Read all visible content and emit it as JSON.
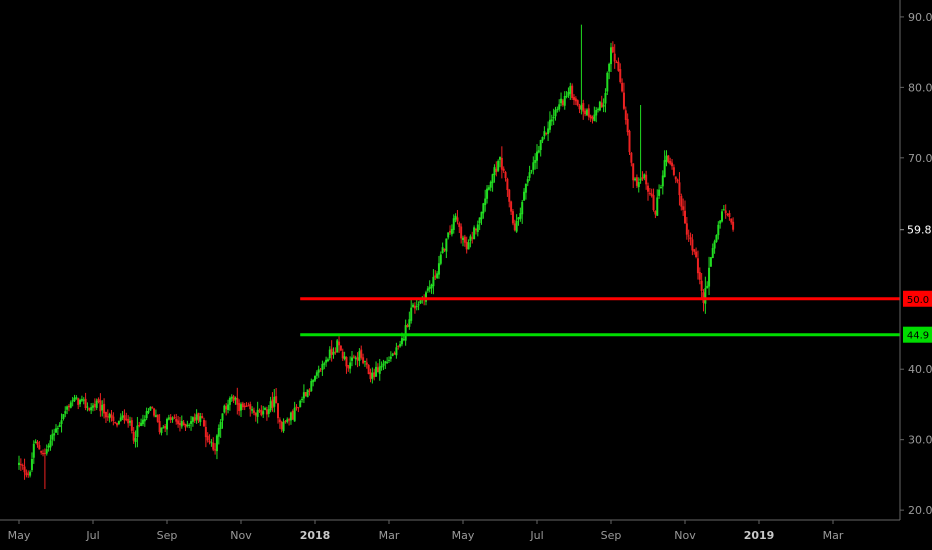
{
  "chart_data": {
    "type": "candlestick",
    "title": "",
    "xlabel": "",
    "ylabel": "",
    "ylim": [
      18.6,
      92.4
    ],
    "grid": false,
    "x_ticks": [
      {
        "label": "May",
        "bold": false
      },
      {
        "label": "Jul",
        "bold": false
      },
      {
        "label": "Sep",
        "bold": false
      },
      {
        "label": "Nov",
        "bold": false
      },
      {
        "label": "2018",
        "bold": true
      },
      {
        "label": "Mar",
        "bold": false
      },
      {
        "label": "May",
        "bold": false
      },
      {
        "label": "Jul",
        "bold": false
      },
      {
        "label": "Sep",
        "bold": false
      },
      {
        "label": "Nov",
        "bold": false
      },
      {
        "label": "2019",
        "bold": true
      },
      {
        "label": "Mar",
        "bold": false
      }
    ],
    "y_ticks": [
      "90.0",
      "80.0",
      "70.0",
      "40.0",
      "30.0",
      "20.0"
    ],
    "current_price": {
      "label": "59.8",
      "value": 59.8
    },
    "levels": [
      {
        "label": "50.0",
        "value": 50.0,
        "color": "#ff0000",
        "start_month": 7.6
      },
      {
        "label": "44.9",
        "value": 44.9,
        "color": "#00dd00",
        "start_month": 7.6
      }
    ],
    "price_path": [
      [
        0.0,
        26.5
      ],
      [
        0.3,
        25.0
      ],
      [
        0.4,
        29.5
      ],
      [
        0.7,
        28.0
      ],
      [
        1.0,
        31.5
      ],
      [
        1.2,
        33.5
      ],
      [
        1.4,
        35.5
      ],
      [
        1.6,
        35.5
      ],
      [
        1.9,
        34.5
      ],
      [
        2.1,
        35.0
      ],
      [
        2.4,
        33.5
      ],
      [
        2.6,
        32.0
      ],
      [
        2.9,
        33.5
      ],
      [
        3.1,
        30.5
      ],
      [
        3.4,
        33.0
      ],
      [
        3.6,
        34.5
      ],
      [
        3.8,
        31.5
      ],
      [
        4.1,
        33.0
      ],
      [
        4.4,
        32.0
      ],
      [
        4.6,
        32.5
      ],
      [
        4.9,
        33.5
      ],
      [
        5.1,
        30.0
      ],
      [
        5.3,
        29.0
      ],
      [
        5.5,
        33.5
      ],
      [
        5.7,
        36.0
      ],
      [
        6.0,
        34.5
      ],
      [
        6.3,
        34.0
      ],
      [
        6.6,
        33.5
      ],
      [
        6.9,
        35.5
      ],
      [
        7.1,
        32.0
      ],
      [
        7.4,
        33.5
      ],
      [
        7.7,
        36.5
      ],
      [
        8.0,
        38.5
      ],
      [
        8.3,
        41.5
      ],
      [
        8.6,
        43.5
      ],
      [
        8.9,
        40.5
      ],
      [
        9.2,
        42.0
      ],
      [
        9.5,
        39.0
      ],
      [
        9.8,
        40.5
      ],
      [
        10.0,
        41.5
      ],
      [
        10.3,
        43.0
      ],
      [
        10.6,
        48.5
      ],
      [
        10.9,
        50.0
      ],
      [
        11.2,
        52.5
      ],
      [
        11.5,
        57.5
      ],
      [
        11.8,
        61.5
      ],
      [
        12.1,
        57.0
      ],
      [
        12.4,
        61.0
      ],
      [
        12.7,
        66.5
      ],
      [
        13.0,
        69.5
      ],
      [
        13.2,
        65.5
      ],
      [
        13.4,
        59.5
      ],
      [
        13.7,
        66.0
      ],
      [
        14.0,
        70.5
      ],
      [
        14.3,
        74.5
      ],
      [
        14.6,
        77.5
      ],
      [
        14.9,
        79.5
      ],
      [
        15.2,
        77.0
      ],
      [
        15.5,
        76.0
      ],
      [
        15.8,
        78.0
      ],
      [
        16.0,
        85.5
      ],
      [
        16.1,
        84.0
      ],
      [
        16.3,
        79.5
      ],
      [
        16.6,
        66.5
      ],
      [
        16.9,
        67.0
      ],
      [
        17.2,
        62.5
      ],
      [
        17.5,
        70.5
      ],
      [
        17.8,
        66.5
      ],
      [
        18.0,
        60.5
      ],
      [
        18.3,
        55.5
      ],
      [
        18.5,
        49.5
      ],
      [
        18.7,
        55.5
      ],
      [
        19.0,
        62.5
      ],
      [
        19.2,
        61.5
      ],
      [
        19.3,
        59.8
      ]
    ],
    "wick_extremes": [
      {
        "month": 0.7,
        "value": 23.0
      },
      {
        "month": 15.2,
        "value": 88.9
      },
      {
        "month": 16.8,
        "value": 77.5
      },
      {
        "month": 18.5,
        "value": 48.2
      }
    ],
    "colors": {
      "up": "#22dd22",
      "down": "#ee2222",
      "axis_line": "#666666",
      "badge_current": "#000000"
    }
  }
}
